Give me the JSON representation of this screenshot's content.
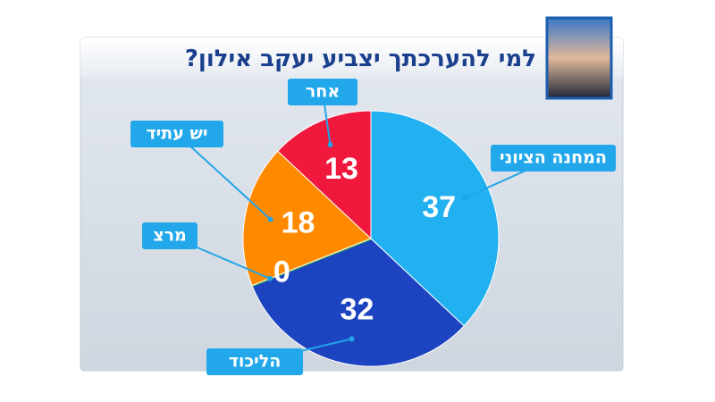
{
  "chart_data": {
    "type": "pie",
    "title": "למי להערכתך יצביע יעקב אילון?",
    "categories": [
      "המחנה הציוני",
      "הליכוד",
      "מרצ",
      "יש עתיד",
      "אחר"
    ],
    "values": [
      37,
      32,
      0,
      18,
      13
    ],
    "colors": [
      "#21b0f0",
      "#1d44c0",
      "#3fb03a",
      "#ff8a00",
      "#f0183c"
    ]
  }
}
